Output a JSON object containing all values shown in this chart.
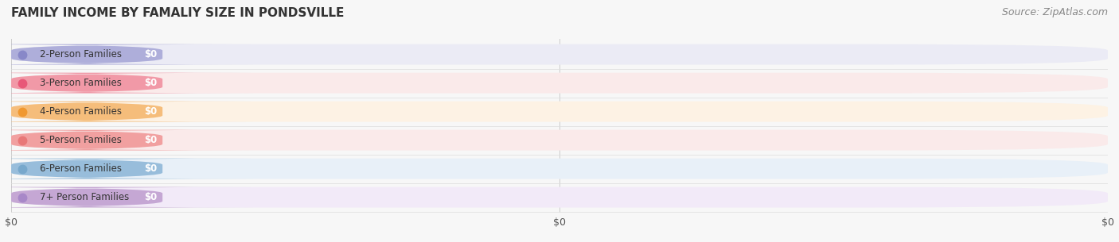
{
  "title": "FAMILY INCOME BY FAMALIY SIZE IN PONDSVILLE",
  "source": "Source: ZipAtlas.com",
  "categories": [
    "2-Person Families",
    "3-Person Families",
    "4-Person Families",
    "5-Person Families",
    "6-Person Families",
    "7+ Person Families"
  ],
  "values": [
    0,
    0,
    0,
    0,
    0,
    0
  ],
  "bar_colors": [
    "#a8a8d8",
    "#f090a0",
    "#f5b870",
    "#f09898",
    "#90b8d8",
    "#c0a0d0"
  ],
  "bar_bg_colors": [
    "#ebebf5",
    "#faeaea",
    "#fdf2e4",
    "#faeaea",
    "#e8f0f8",
    "#f2eaf8"
  ],
  "dot_colors": [
    "#8888c8",
    "#e85878",
    "#f09830",
    "#e87878",
    "#78a8cc",
    "#a888c8"
  ],
  "value_labels": [
    "$0",
    "$0",
    "$0",
    "$0",
    "$0",
    "$0"
  ],
  "x_tick_labels": [
    "$0",
    "$0",
    "$0"
  ],
  "background_color": "#f7f7f7",
  "title_fontsize": 11,
  "source_fontsize": 9,
  "label_fontsize": 8.5,
  "value_fontsize": 8.5
}
